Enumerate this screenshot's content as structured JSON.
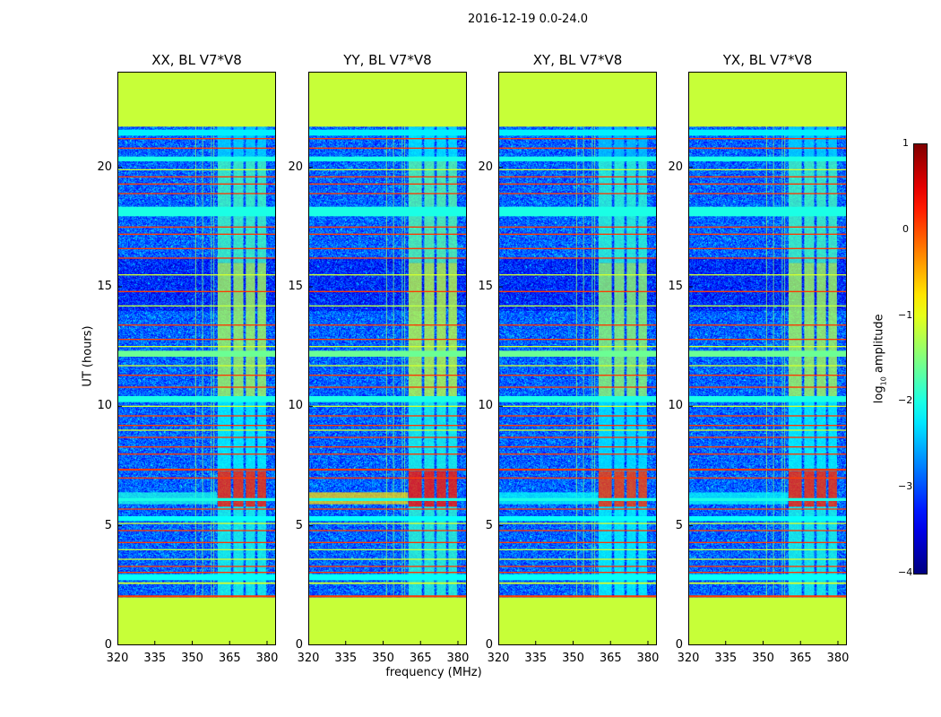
{
  "chart_data": {
    "type": "heatmap",
    "title": "2016-12-19 0.0-24.0",
    "xlabel": "frequency (MHz)",
    "ylabel": "UT (hours)",
    "xlim": [
      320,
      383.6
    ],
    "ylim": [
      0,
      24
    ],
    "xticks": [
      320,
      335,
      350,
      365,
      380
    ],
    "yticks": [
      0,
      5,
      10,
      15,
      20
    ],
    "colorbar": {
      "label_prefix": "log",
      "label_sub": "10",
      "label_suffix": " amplitude",
      "range": [
        -4,
        1
      ],
      "ticks": [
        1,
        0,
        -1,
        -2,
        -3,
        -4
      ]
    },
    "panels": [
      {
        "title": "XX, BL V7*V8",
        "block_gain": 0.0,
        "band6_level": -2.0
      },
      {
        "title": "YY, BL V7*V8",
        "block_gain": 0.1,
        "band6_level": -0.7
      },
      {
        "title": "XY, BL V7*V8",
        "block_gain": -0.1,
        "band6_level": -2.1
      },
      {
        "title": "YX, BL V7*V8",
        "block_gain": 0.0,
        "band6_level": -2.1
      }
    ],
    "background_level": -2.9,
    "quiet_region": {
      "from": 14.0,
      "to": 16.2,
      "value": -3.2
    },
    "flagged": [
      {
        "from": 0,
        "to": 2.0,
        "value": -1.15
      },
      {
        "from": 21.7,
        "to": 24,
        "value": -1.15
      }
    ],
    "stripes": [
      {
        "t": 2.05,
        "w": 0.08,
        "v": 0.1
      },
      {
        "t": 2.6,
        "w": 0.07,
        "v": -1.1
      },
      {
        "t": 2.85,
        "w": 0.25,
        "v": -2.1
      },
      {
        "t": 3.05,
        "w": 0.05,
        "v": 0.1
      },
      {
        "t": 3.3,
        "w": 0.05,
        "v": 0.1
      },
      {
        "t": 3.6,
        "w": 0.05,
        "v": -1.1
      },
      {
        "t": 4.0,
        "w": 0.05,
        "v": -1.2
      },
      {
        "t": 4.3,
        "w": 0.05,
        "v": 0.1
      },
      {
        "t": 4.8,
        "w": 0.05,
        "v": 0.1
      },
      {
        "t": 5.1,
        "w": 0.05,
        "v": -1.1
      },
      {
        "t": 5.3,
        "w": 0.2,
        "v": -2.1
      },
      {
        "t": 5.7,
        "w": 0.05,
        "v": 0.1
      },
      {
        "t": 6.1,
        "w": 0.12,
        "v": -2.0
      },
      {
        "t": 7.0,
        "w": 0.05,
        "v": 0.1
      },
      {
        "t": 7.35,
        "w": 0.08,
        "v": 0.1
      },
      {
        "t": 8.0,
        "w": 0.05,
        "v": 0.1
      },
      {
        "t": 8.3,
        "w": 0.05,
        "v": 0.1
      },
      {
        "t": 8.7,
        "w": 0.05,
        "v": 0.1
      },
      {
        "t": 9.0,
        "w": 0.05,
        "v": -1.1
      },
      {
        "t": 9.2,
        "w": 0.05,
        "v": 0.1
      },
      {
        "t": 9.6,
        "w": 0.05,
        "v": 0.1
      },
      {
        "t": 10.0,
        "w": 0.05,
        "v": -1.1
      },
      {
        "t": 10.3,
        "w": 0.25,
        "v": -2.0
      },
      {
        "t": 10.8,
        "w": 0.05,
        "v": 0.1
      },
      {
        "t": 11.3,
        "w": 0.05,
        "v": 0.1
      },
      {
        "t": 11.7,
        "w": 0.05,
        "v": -1.1
      },
      {
        "t": 12.2,
        "w": 0.25,
        "v": -1.6
      },
      {
        "t": 12.5,
        "w": 0.05,
        "v": -1.1
      },
      {
        "t": 12.8,
        "w": 0.05,
        "v": 0.1
      },
      {
        "t": 13.4,
        "w": 0.05,
        "v": 0.1
      },
      {
        "t": 14.2,
        "w": 0.05,
        "v": -1.2
      },
      {
        "t": 14.8,
        "w": 0.05,
        "v": 0.1
      },
      {
        "t": 15.5,
        "w": 0.05,
        "v": -1.1
      },
      {
        "t": 16.2,
        "w": 0.05,
        "v": 0.1
      },
      {
        "t": 16.6,
        "w": 0.05,
        "v": 0.1
      },
      {
        "t": 17.2,
        "w": 0.05,
        "v": 0.1
      },
      {
        "t": 17.5,
        "w": 0.05,
        "v": 0.1
      },
      {
        "t": 18.15,
        "w": 0.4,
        "v": -2.0
      },
      {
        "t": 18.9,
        "w": 0.05,
        "v": 0.1
      },
      {
        "t": 19.3,
        "w": 0.05,
        "v": 0.1
      },
      {
        "t": 19.6,
        "w": 0.05,
        "v": 0.1
      },
      {
        "t": 19.9,
        "w": 0.05,
        "v": -1.1
      },
      {
        "t": 20.35,
        "w": 0.2,
        "v": -2.0
      },
      {
        "t": 20.8,
        "w": 0.05,
        "v": 0.1
      },
      {
        "t": 21.2,
        "w": 0.05,
        "v": 0.1
      },
      {
        "t": 21.45,
        "w": 0.25,
        "v": -2.2
      }
    ],
    "channel_blocks": [
      {
        "f0": 360.2,
        "f1": 365.5
      },
      {
        "f0": 366.5,
        "f1": 370.5
      },
      {
        "f0": 371.5,
        "f1": 375.2
      },
      {
        "f0": 376.2,
        "f1": 379.6
      }
    ],
    "block_epochs": [
      {
        "t0": 2.0,
        "t1": 5.8,
        "v": -2.0
      },
      {
        "t0": 5.8,
        "t1": 7.3,
        "v": 0.15
      },
      {
        "t0": 7.3,
        "t1": 10.4,
        "v": -2.1
      },
      {
        "t0": 10.4,
        "t1": 16.0,
        "v": -1.3
      },
      {
        "t0": 16.0,
        "t1": 20.3,
        "v": -1.8
      },
      {
        "t0": 20.3,
        "t1": 21.7,
        "v": -2.3
      }
    ],
    "rfi_channels": [
      {
        "f": 351.2,
        "v": -1.4
      },
      {
        "f": 354.0,
        "v": -1.5
      },
      {
        "f": 357.5,
        "v": -1.6
      },
      {
        "f": 358.5,
        "v": -1.5
      }
    ]
  }
}
